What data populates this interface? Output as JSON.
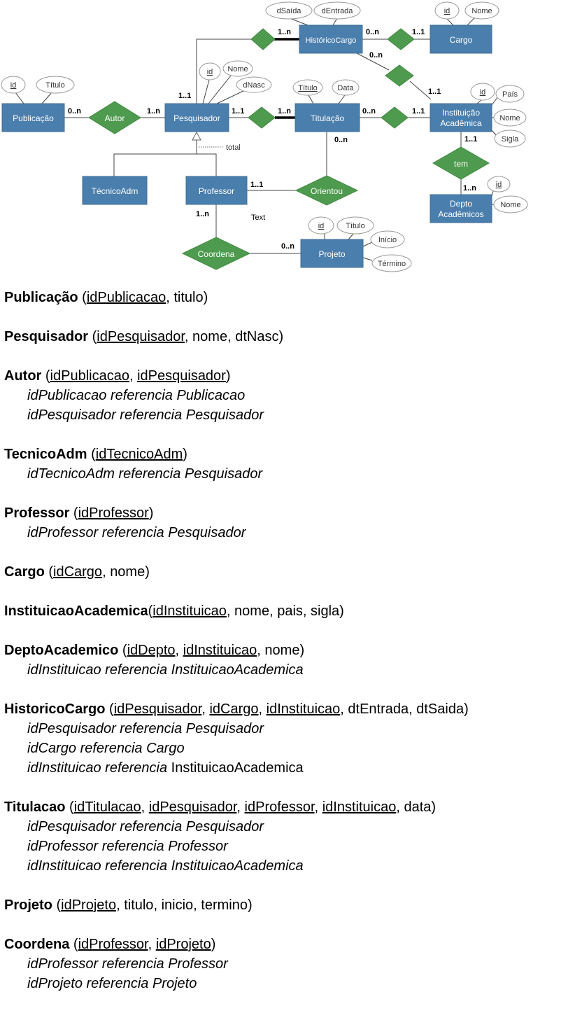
{
  "diagram": {
    "entities": {
      "publicacao": "Publicação",
      "pesquisador": "Pesquisador",
      "historico_cargo": "HistóricoCargo",
      "cargo": "Cargo",
      "titulacao": "Titulação",
      "instituicao_l1": "Instituição",
      "instituicao_l2": "Acadêmica",
      "tecnico_adm": "TécnicoAdm",
      "professor": "Professor",
      "depto_l1": "Depto",
      "depto_l2": "Acadêmicos",
      "projeto": "Projeto"
    },
    "relationships": {
      "autor": "Autor",
      "orientou": "Orientou",
      "coordena": "Coordena",
      "tem": "tem"
    },
    "attributes": {
      "pub_id": "id",
      "pub_titulo": "Título",
      "pes_id": "id",
      "pes_nome": "Nome",
      "pes_dnasc": "dNasc",
      "hc_dsaida": "dSaída",
      "hc_dentrada": "dEntrada",
      "cargo_id": "id",
      "cargo_nome": "Nome",
      "tit_titulo": "Título",
      "tit_data": "Data",
      "inst_id": "id",
      "inst_pais": "País",
      "inst_nome": "Nome",
      "inst_sigla": "Sigla",
      "depto_id": "id",
      "depto_nome": "Nome",
      "proj_id": "id",
      "proj_titulo": "Título",
      "proj_inicio": "Início",
      "proj_termino": "Término"
    },
    "cardinalities": {
      "pub_autor": "0..n",
      "autor_pes": "1..n",
      "pes_hc": "1..1",
      "hc_left": "1..n",
      "hc_cargo_a": "0..n",
      "hc_cargo_b": "1..1",
      "hc_inst_a": "0..n",
      "hc_inst_b": "1..1",
      "pes_tit_a": "1..1",
      "pes_tit_b": "1..n",
      "tit_inst_a": "0..n",
      "tit_inst_b": "1..1",
      "tit_orientou": "0..n",
      "inst_tem": "1..1",
      "tem_depto": "1..n",
      "prof_orientou": "1..1",
      "prof_coordena": "1..n",
      "coordena_proj": "0..n"
    },
    "specialization_label": "total",
    "stray_text": "Text"
  },
  "schema": [
    {
      "name": "Publicação",
      "open": " (",
      "cols": [
        {
          "t": "idPublicacao",
          "pk": true
        },
        {
          "t": "titulo",
          "pk": false
        }
      ],
      "close": ")",
      "refs": []
    },
    {
      "name": "Pesquisador",
      "open": " (",
      "cols": [
        {
          "t": "idPesquisador",
          "pk": true
        },
        {
          "t": "nome",
          "pk": false
        },
        {
          "t": "dtNasc",
          "pk": false
        }
      ],
      "close": ")",
      "refs": []
    },
    {
      "name": "Autor",
      "open": " (",
      "cols": [
        {
          "t": "idPublicacao",
          "pk": true
        },
        {
          "t": "idPesquisador",
          "pk": true
        }
      ],
      "close": ")",
      "refs": [
        {
          "text": "idPublicacao referencia Publicacao",
          "plain": ""
        },
        {
          "text": "idPesquisador referencia Pesquisador",
          "plain": ""
        }
      ]
    },
    {
      "name": "TecnicoAdm",
      "open": " (",
      "cols": [
        {
          "t": "idTecnicoAdm",
          "pk": true
        }
      ],
      "close": ")",
      "refs": [
        {
          "text": "idTecnicoAdm referencia Pesquisador",
          "plain": ""
        }
      ]
    },
    {
      "name": "Professor",
      "open": " (",
      "cols": [
        {
          "t": "idProfessor",
          "pk": true
        }
      ],
      "close": ")",
      "refs": [
        {
          "text": "idProfessor referencia Pesquisador",
          "plain": ""
        }
      ]
    },
    {
      "name": "Cargo",
      "open": " (",
      "cols": [
        {
          "t": "idCargo",
          "pk": true
        },
        {
          "t": "nome",
          "pk": false
        }
      ],
      "close": ")",
      "refs": []
    },
    {
      "name": "InstituicaoAcademica",
      "open": "(",
      "cols": [
        {
          "t": "idInstituicao",
          "pk": true
        },
        {
          "t": "nome",
          "pk": false
        },
        {
          "t": "pais",
          "pk": false
        },
        {
          "t": "sigla",
          "pk": false
        }
      ],
      "close": ")",
      "refs": []
    },
    {
      "name": "DeptoAcademico",
      "open": " (",
      "cols": [
        {
          "t": "idDepto",
          "pk": true
        },
        {
          "t": "idInstituicao",
          "pk": true
        },
        {
          "t": "nome",
          "pk": false
        }
      ],
      "close": ")",
      "refs": [
        {
          "text": "idInstituicao referencia InstituicaoAcademica",
          "plain": ""
        }
      ]
    },
    {
      "name": "HistoricoCargo",
      "open": " (",
      "cols": [
        {
          "t": "idPesquisador",
          "pk": true
        },
        {
          "t": "idCargo",
          "pk": true
        },
        {
          "t": "idInstituicao",
          "pk": true
        },
        {
          "t": "dtEntrada",
          "pk": false
        },
        {
          "t": "dtSaida",
          "pk": false
        }
      ],
      "close": ")",
      "refs": [
        {
          "text": "idPesquisador referencia Pesquisador",
          "plain": ""
        },
        {
          "text": "idCargo referencia Cargo",
          "plain": ""
        },
        {
          "text": "idInstituicao referencia ",
          "plain": "InstituicaoAcademica"
        }
      ]
    },
    {
      "name": "Titulacao",
      "open": " (",
      "cols": [
        {
          "t": "idTitulacao",
          "pk": true
        },
        {
          "t": "idPesquisador",
          "pk": true
        },
        {
          "t": "idProfessor",
          "pk": true
        },
        {
          "t": "idInstituicao",
          "pk": true
        },
        {
          "t": "data",
          "pk": false
        }
      ],
      "close": ")",
      "refs": [
        {
          "text": "idPesquisador referencia Pesquisador",
          "plain": ""
        },
        {
          "text": "idProfessor referencia Professor",
          "plain": ""
        },
        {
          "text": "idInstituicao referencia InstituicaoAcademica",
          "plain": ""
        }
      ]
    },
    {
      "name": "Projeto",
      "open": " (",
      "cols": [
        {
          "t": "idProjeto",
          "pk": true
        },
        {
          "t": "titulo",
          "pk": false
        },
        {
          "t": "inicio",
          "pk": false
        },
        {
          "t": "termino",
          "pk": false
        }
      ],
      "close": ")",
      "refs": []
    },
    {
      "name": "Coordena",
      "open": " (",
      "cols": [
        {
          "t": "idProfessor",
          "pk": true
        },
        {
          "t": "idProjeto",
          "pk": true
        }
      ],
      "close": ")",
      "refs": [
        {
          "text": "idProfessor referencia Professor",
          "plain": ""
        },
        {
          "text": "idProjeto referencia Projeto",
          "plain": ""
        }
      ]
    }
  ]
}
